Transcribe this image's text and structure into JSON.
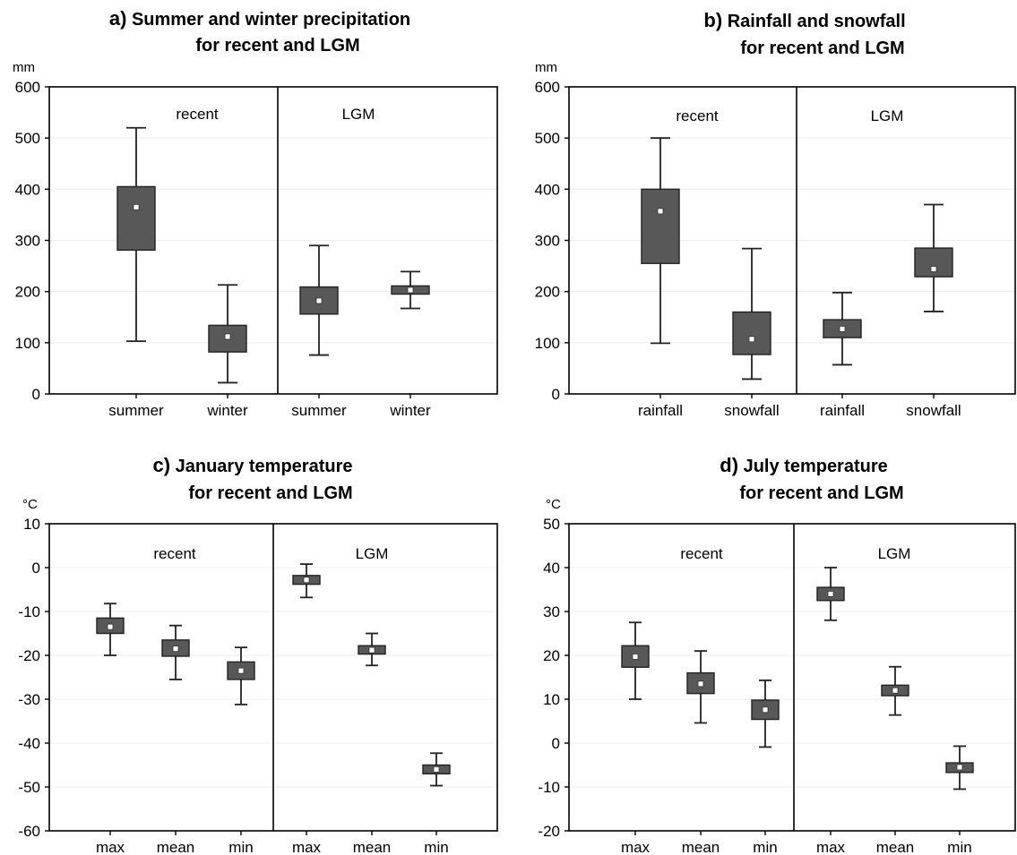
{
  "figure": {
    "colors": {
      "box_fill": "#585858",
      "box_edge": "#222222",
      "mean_marker": "#ffffff",
      "axis": "#000000",
      "grid": "#ececec"
    }
  },
  "chart_data": [
    {
      "type": "box",
      "title_letter": "a)",
      "title_line1": "Summer and winter precipitation",
      "title_line2": "for recent and LGM",
      "ylabel": "mm",
      "ylim": [
        0,
        600
      ],
      "yticks": [
        0,
        100,
        200,
        300,
        400,
        500,
        600
      ],
      "groups": [
        "recent",
        "LGM"
      ],
      "categories": [
        "summer",
        "winter",
        "summer",
        "winter"
      ],
      "boxes": [
        {
          "category": "summer",
          "group": "recent",
          "mean": 365,
          "box_low": 281,
          "box_high": 405,
          "whisker_low": 103,
          "whisker_high": 520
        },
        {
          "category": "winter",
          "group": "recent",
          "mean": 112,
          "box_low": 82,
          "box_high": 134,
          "whisker_low": 22,
          "whisker_high": 213
        },
        {
          "category": "summer",
          "group": "LGM",
          "mean": 182,
          "box_low": 156,
          "box_high": 209,
          "whisker_low": 76,
          "whisker_high": 290
        },
        {
          "category": "winter",
          "group": "LGM",
          "mean": 203,
          "box_low": 195,
          "box_high": 211,
          "whisker_low": 167,
          "whisker_high": 239
        }
      ]
    },
    {
      "type": "box",
      "title_letter": "b)",
      "title_line1": "Rainfall and snowfall",
      "title_line2": "for recent and LGM",
      "ylabel": "mm",
      "ylim": [
        0,
        600
      ],
      "yticks": [
        0,
        100,
        200,
        300,
        400,
        500,
        600
      ],
      "groups": [
        "recent",
        "LGM"
      ],
      "categories": [
        "rainfall",
        "snowfall",
        "rainfall",
        "snowfall"
      ],
      "boxes": [
        {
          "category": "rainfall",
          "group": "recent",
          "mean": 357,
          "box_low": 255,
          "box_high": 400,
          "whisker_low": 99,
          "whisker_high": 500
        },
        {
          "category": "snowfall",
          "group": "recent",
          "mean": 107,
          "box_low": 77,
          "box_high": 160,
          "whisker_low": 29,
          "whisker_high": 284
        },
        {
          "category": "rainfall",
          "group": "LGM",
          "mean": 127,
          "box_low": 110,
          "box_high": 145,
          "whisker_low": 57,
          "whisker_high": 198
        },
        {
          "category": "snowfall",
          "group": "LGM",
          "mean": 244,
          "box_low": 229,
          "box_high": 285,
          "whisker_low": 161,
          "whisker_high": 370
        }
      ]
    },
    {
      "type": "box",
      "title_letter": "c)",
      "title_line1": "January temperature",
      "title_line2": "for recent and LGM",
      "ylabel": "°C",
      "ylim": [
        -60,
        10
      ],
      "yticks": [
        -60,
        -50,
        -40,
        -30,
        -20,
        -10,
        0,
        10
      ],
      "groups": [
        "recent",
        "LGM"
      ],
      "categories": [
        "max",
        "mean",
        "min",
        "max",
        "mean",
        "min"
      ],
      "boxes": [
        {
          "category": "max",
          "group": "recent",
          "mean": -13.5,
          "box_low": -15.0,
          "box_high": -11.5,
          "whisker_low": -20.0,
          "whisker_high": -8.2
        },
        {
          "category": "mean",
          "group": "recent",
          "mean": -18.5,
          "box_low": -20.2,
          "box_high": -16.5,
          "whisker_low": -25.5,
          "whisker_high": -13.2
        },
        {
          "category": "min",
          "group": "recent",
          "mean": -23.5,
          "box_low": -25.5,
          "box_high": -21.5,
          "whisker_low": -31.2,
          "whisker_high": -18.2
        },
        {
          "category": "max",
          "group": "LGM",
          "mean": -2.8,
          "box_low": -3.8,
          "box_high": -1.8,
          "whisker_low": -6.8,
          "whisker_high": 0.8
        },
        {
          "category": "mean",
          "group": "LGM",
          "mean": -18.8,
          "box_low": -19.7,
          "box_high": -17.8,
          "whisker_low": -22.3,
          "whisker_high": -15.0
        },
        {
          "category": "min",
          "group": "LGM",
          "mean": -46.0,
          "box_low": -47.0,
          "box_high": -45.0,
          "whisker_low": -49.7,
          "whisker_high": -42.3
        }
      ]
    },
    {
      "type": "box",
      "title_letter": "d)",
      "title_line1": "July temperature",
      "title_line2": "for recent and LGM",
      "ylabel": "°C",
      "ylim": [
        -20,
        50
      ],
      "yticks": [
        -20,
        -10,
        0,
        10,
        20,
        30,
        40,
        50
      ],
      "groups": [
        "recent",
        "LGM"
      ],
      "categories": [
        "max",
        "mean",
        "min",
        "max",
        "mean",
        "min"
      ],
      "boxes": [
        {
          "category": "max",
          "group": "recent",
          "mean": 19.7,
          "box_low": 17.3,
          "box_high": 22.2,
          "whisker_low": 10.0,
          "whisker_high": 27.5
        },
        {
          "category": "mean",
          "group": "recent",
          "mean": 13.5,
          "box_low": 11.3,
          "box_high": 16.0,
          "whisker_low": 4.6,
          "whisker_high": 21.0
        },
        {
          "category": "min",
          "group": "recent",
          "mean": 7.6,
          "box_low": 5.4,
          "box_high": 9.8,
          "whisker_low": -0.9,
          "whisker_high": 14.3
        },
        {
          "category": "max",
          "group": "LGM",
          "mean": 34.0,
          "box_low": 32.5,
          "box_high": 35.5,
          "whisker_low": 28.0,
          "whisker_high": 40.0
        },
        {
          "category": "mean",
          "group": "LGM",
          "mean": 12.0,
          "box_low": 10.8,
          "box_high": 13.2,
          "whisker_low": 6.4,
          "whisker_high": 17.4
        },
        {
          "category": "min",
          "group": "LGM",
          "mean": -5.5,
          "box_low": -6.7,
          "box_high": -4.5,
          "whisker_low": -10.5,
          "whisker_high": -0.7
        }
      ]
    }
  ]
}
